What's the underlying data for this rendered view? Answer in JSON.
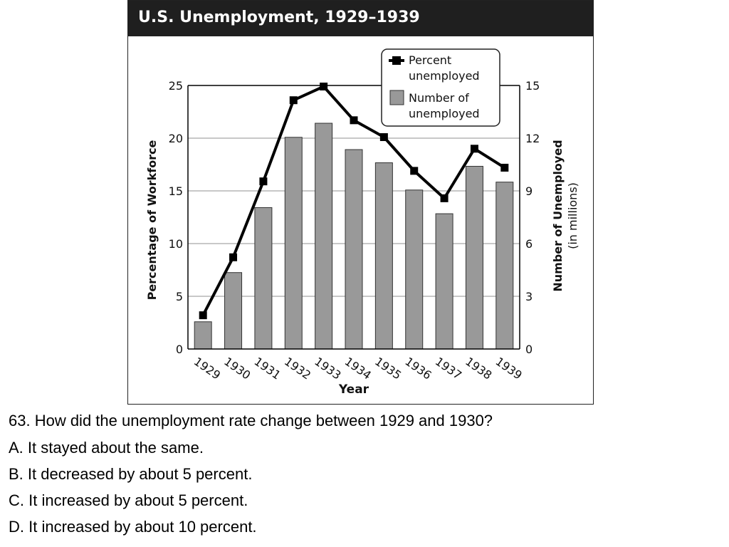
{
  "chart_data": {
    "type": "bar+line",
    "title": "U.S. Unemployment, 1929–1939",
    "xlabel": "Year",
    "ylabel_left": "Percentage of Workforce",
    "ylabel_right": "Number of Unemployed",
    "ylabel_right_unit": "(in millions)",
    "categories": [
      "1929",
      "1930",
      "1931",
      "1932",
      "1933",
      "1934",
      "1935",
      "1936",
      "1937",
      "1938",
      "1939"
    ],
    "ylim_left": [
      0,
      25
    ],
    "ylim_right": [
      0,
      15
    ],
    "yticks_left": [
      "0",
      "5",
      "10",
      "15",
      "20",
      "25"
    ],
    "yticks_right": [
      "0",
      "3",
      "6",
      "9",
      "12",
      "15"
    ],
    "grid": true,
    "legend_position": "top-right",
    "series": [
      {
        "name": "Number of unemployed",
        "kind": "bar",
        "axis": "right",
        "color": "#999999",
        "values": [
          1.55,
          4.35,
          8.05,
          12.05,
          12.85,
          11.35,
          10.6,
          9.05,
          7.7,
          10.4,
          9.5
        ]
      },
      {
        "name": "Percent unemployed",
        "kind": "line",
        "axis": "left",
        "color": "#000000",
        "values": [
          3.2,
          8.7,
          15.9,
          23.6,
          24.9,
          21.7,
          20.1,
          16.9,
          14.3,
          19.0,
          17.2
        ]
      }
    ],
    "legend": [
      {
        "label_lines": [
          "Percent",
          "unemployed"
        ],
        "marker": "line-square"
      },
      {
        "label_lines": [
          "Number of",
          "unemployed"
        ],
        "marker": "gray-box"
      }
    ]
  },
  "question": {
    "prompt": "63. How did the unemployment rate change between 1929 and 1930?",
    "options": [
      "A. It stayed about the same.",
      "B. It decreased by about 5 percent.",
      "C. It increased by about 5 percent.",
      "D. It increased by about 10 percent."
    ]
  }
}
